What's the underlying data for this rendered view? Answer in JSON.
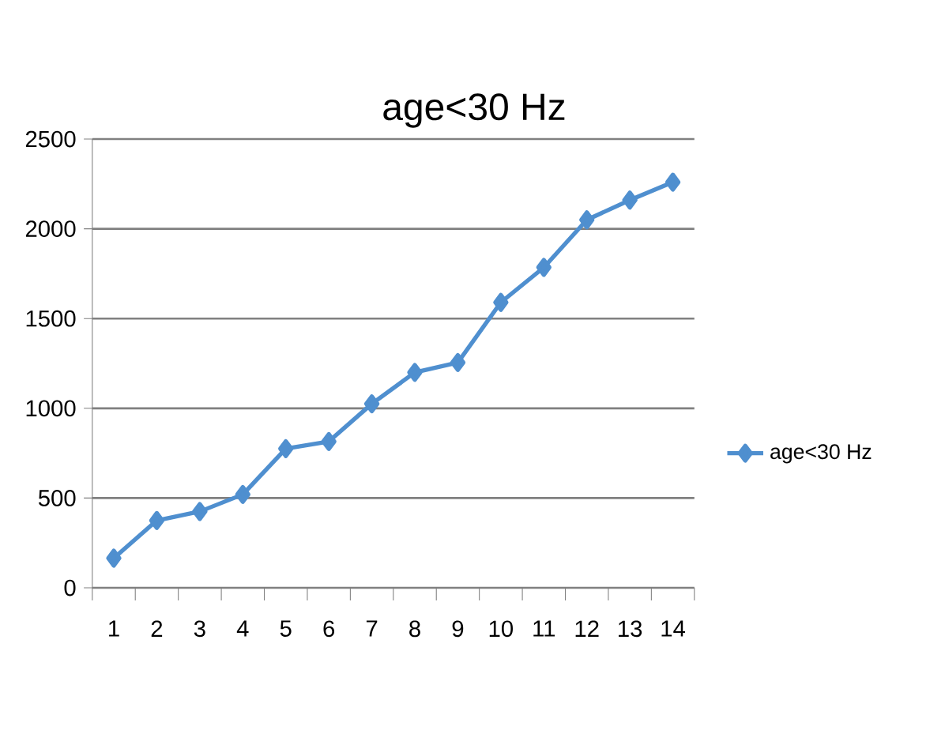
{
  "chart_data": {
    "type": "line",
    "title": "age<30   Hz",
    "categories": [
      "1",
      "2",
      "3",
      "4",
      "5",
      "6",
      "7",
      "8",
      "9",
      "10",
      "11",
      "12",
      "13",
      "14"
    ],
    "series": [
      {
        "name": "age<30  Hz",
        "color": "#4f8fcf",
        "values": [
          165,
          375,
          425,
          520,
          775,
          815,
          1025,
          1200,
          1255,
          1590,
          1785,
          2050,
          2160,
          2260
        ]
      }
    ],
    "ylim": [
      0,
      2500
    ],
    "yticks": [
      0,
      500,
      1000,
      1500,
      2000,
      2500
    ],
    "grid": "y",
    "legend": "right",
    "marker": "diamond",
    "line_style": "solid"
  }
}
